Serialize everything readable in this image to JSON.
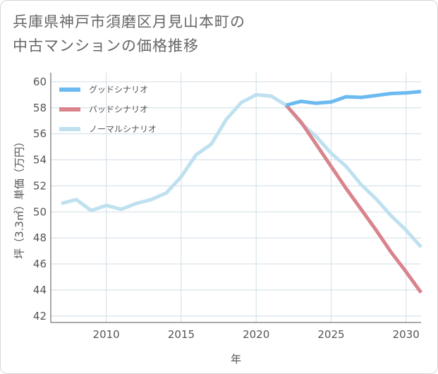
{
  "title": {
    "line1": "兵庫県神戸市須磨区月見山本町の",
    "line2": "中古マンションの価格推移"
  },
  "colors": {
    "good": "#6bbaf0",
    "bad": "#d9848c",
    "normal": "#bfe1ef",
    "grid": "#d0dde6",
    "axis": "#555555"
  },
  "chart_data": {
    "type": "line",
    "xlabel": "年",
    "ylabel": "坪（3.3㎡）単価（万円）",
    "xlim": [
      2006.3,
      2031
    ],
    "ylim": [
      41.5,
      60.7
    ],
    "xticks": [
      2010,
      2015,
      2020,
      2025,
      2030
    ],
    "yticks": [
      42,
      44,
      46,
      48,
      50,
      52,
      54,
      56,
      58,
      60
    ],
    "grid": true,
    "legend_position": "top-left",
    "series": [
      {
        "name": "グッドシナリオ",
        "color": "#6bbaf0",
        "x": [
          2022,
          2023,
          2024,
          2025,
          2026,
          2027,
          2028,
          2029,
          2030,
          2031
        ],
        "y": [
          58.2,
          58.5,
          58.35,
          58.45,
          58.85,
          58.8,
          58.95,
          59.1,
          59.15,
          59.25
        ]
      },
      {
        "name": "バッドシナリオ",
        "color": "#d9848c",
        "x": [
          2022,
          2023,
          2024,
          2025,
          2026,
          2027,
          2028,
          2029,
          2030,
          2031
        ],
        "y": [
          58.2,
          56.9,
          55.2,
          53.5,
          51.8,
          50.2,
          48.6,
          46.9,
          45.4,
          43.8
        ]
      },
      {
        "name": "ノーマルシナリオ",
        "color": "#bfe1ef",
        "x": [
          2007,
          2008,
          2009,
          2010,
          2011,
          2012,
          2013,
          2014,
          2015,
          2016,
          2017,
          2018,
          2019,
          2020,
          2021,
          2022,
          2023,
          2024,
          2025,
          2026,
          2027,
          2028,
          2029,
          2030,
          2031
        ],
        "y": [
          50.65,
          50.95,
          50.1,
          50.5,
          50.2,
          50.65,
          50.95,
          51.45,
          52.7,
          54.4,
          55.2,
          57.1,
          58.4,
          59.0,
          58.9,
          58.2,
          56.8,
          55.8,
          54.5,
          53.5,
          52.1,
          51.0,
          49.7,
          48.6,
          47.3
        ]
      }
    ]
  }
}
